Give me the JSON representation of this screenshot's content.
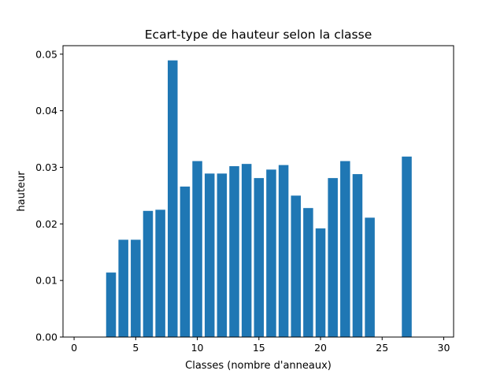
{
  "chart_data": {
    "type": "bar",
    "title": "Ecart-type de hauteur selon la classe",
    "xlabel": "Classes (nombre d'anneaux)",
    "ylabel": "hauteur",
    "xlim": [
      -0.9,
      30.8
    ],
    "ylim": [
      0,
      0.0515
    ],
    "xticks": [
      0,
      5,
      10,
      15,
      20,
      25,
      30
    ],
    "yticks": [
      "0.00",
      "0.01",
      "0.02",
      "0.03",
      "0.04",
      "0.05"
    ],
    "bar_width": 0.8,
    "color": "#1f77b4",
    "grid": false,
    "x": [
      3,
      4,
      5,
      6,
      7,
      8,
      9,
      10,
      11,
      12,
      13,
      14,
      15,
      16,
      17,
      18,
      19,
      20,
      21,
      22,
      23,
      24,
      27
    ],
    "values": [
      0.0114,
      0.0172,
      0.0172,
      0.0223,
      0.0225,
      0.0489,
      0.0266,
      0.0311,
      0.0289,
      0.0289,
      0.0302,
      0.0306,
      0.0281,
      0.0296,
      0.0304,
      0.025,
      0.0228,
      0.0192,
      0.0281,
      0.0311,
      0.0288,
      0.0211,
      0.0319
    ]
  }
}
